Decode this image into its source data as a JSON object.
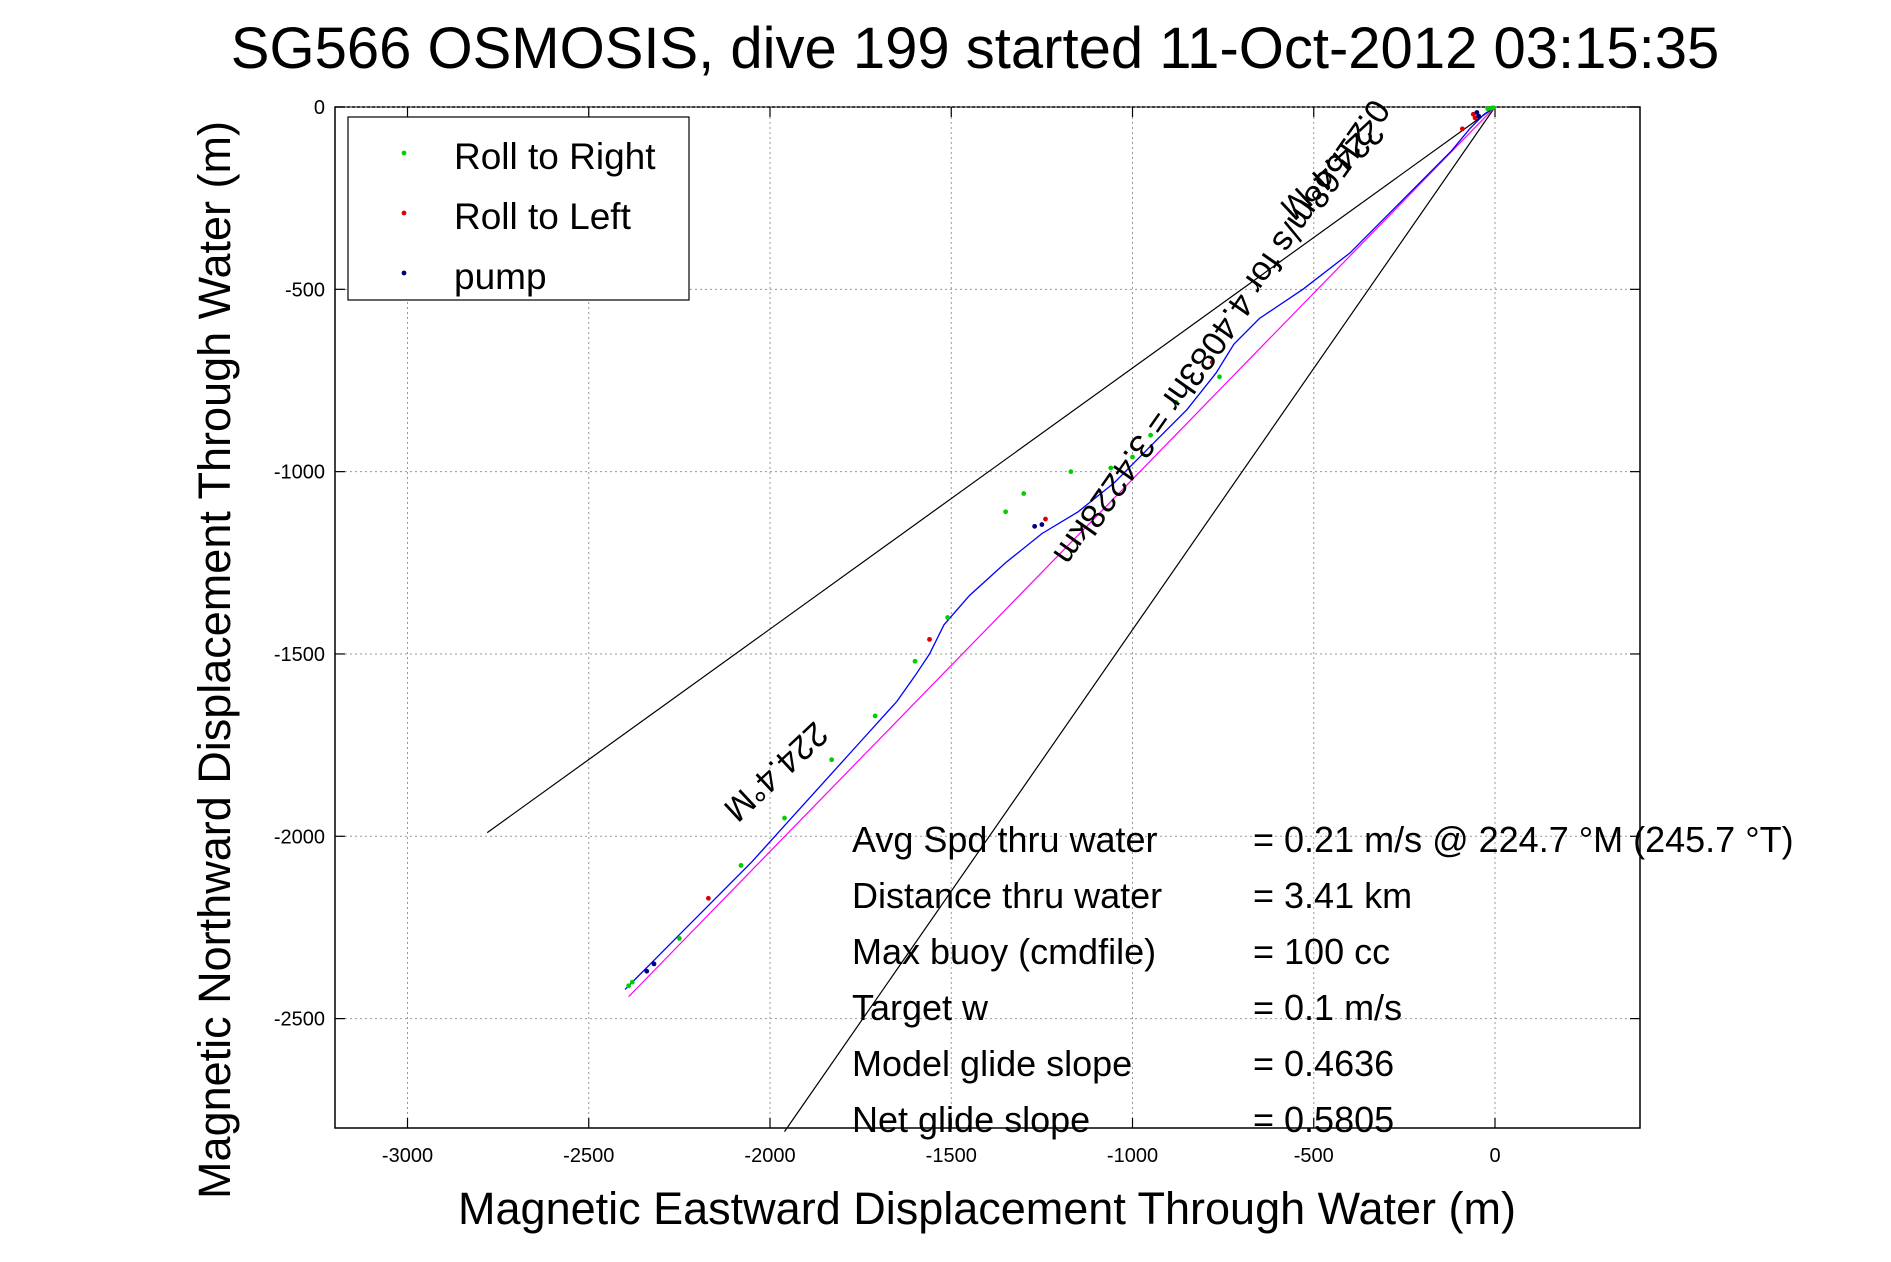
{
  "chart_data": {
    "type": "line",
    "title": "SG566 OSMOSIS, dive 199 started 11-Oct-2012 03:15:35",
    "xlabel": "Magnetic Eastward Displacement Through Water (m)",
    "ylabel": "Magnetic Northward Displacement Through Water (m)",
    "xlim": [
      -3200,
      400
    ],
    "ylim": [
      -2800,
      0
    ],
    "xticks": [
      -3000,
      -2500,
      -2000,
      -1500,
      -1000,
      -500,
      0
    ],
    "yticks": [
      0,
      -500,
      -1000,
      -1500,
      -2000,
      -2500
    ],
    "grid": true,
    "legend": {
      "placement": "top-left",
      "entries": [
        {
          "label": "Roll to Right",
          "color": "#00d000"
        },
        {
          "label": "Roll to Left",
          "color": "#e00000"
        },
        {
          "label": "pump",
          "color": "#000080"
        }
      ]
    },
    "track": {
      "color": "#0000ff",
      "x": [
        0,
        -30,
        -70,
        -120,
        -250,
        -400,
        -530,
        -650,
        -720,
        -770,
        -850,
        -950,
        -1050,
        -1150,
        -1250,
        -1350,
        -1450,
        -1520,
        -1560,
        -1600,
        -1650,
        -1750,
        -1850,
        -1950,
        -2050,
        -2150,
        -2250,
        -2330,
        -2370,
        -2400
      ],
      "y": [
        0,
        -20,
        -60,
        -120,
        -250,
        -400,
        -500,
        -580,
        -650,
        -730,
        -830,
        -930,
        -1030,
        -1110,
        -1170,
        -1250,
        -1340,
        -1420,
        -1500,
        -1560,
        -1630,
        -1740,
        -1850,
        -1960,
        -2070,
        -2170,
        -2270,
        -2350,
        -2390,
        -2420
      ]
    },
    "target_line": {
      "color": "#ff00ff",
      "x": [
        0,
        -2390
      ],
      "y": [
        0,
        -2440
      ]
    },
    "bounds": {
      "color": "#000000",
      "lines": [
        {
          "x": [
            0,
            -2780
          ],
          "y": [
            0,
            -1990
          ]
        },
        {
          "x": [
            0,
            -1960
          ],
          "y": [
            0,
            -2810
          ]
        }
      ]
    },
    "markers": {
      "roll_right": {
        "color": "#00d000",
        "x": [
          -20,
          -10,
          -5,
          -2080,
          -1960,
          -2250,
          -2380,
          -2390,
          -1830,
          -1600,
          -1510,
          -1350,
          -1300,
          -1170,
          -1060,
          -1000,
          -950,
          -880,
          -760,
          -1710
        ],
        "y": [
          -5,
          -3,
          -2,
          -2080,
          -1950,
          -2280,
          -2400,
          -2410,
          -1790,
          -1520,
          -1400,
          -1110,
          -1060,
          -1000,
          -990,
          -960,
          -900,
          -810,
          -740,
          -1670
        ]
      },
      "roll_left": {
        "color": "#e00000",
        "x": [
          -60,
          -55,
          -90,
          -2170,
          -1560,
          -1240,
          -780
        ],
        "y": [
          -20,
          -30,
          -60,
          -2170,
          -1460,
          -1130,
          -700
        ]
      },
      "pump": {
        "color": "#000080",
        "x": [
          -50,
          -45,
          -2320,
          -2340,
          -1270,
          -1250
        ],
        "y": [
          -15,
          -25,
          -2350,
          -2370,
          -1150,
          -1145
        ]
      }
    },
    "annotations": [
      {
        "text": "224.4°M",
        "x": -2005,
        "y": -1800
      },
      {
        "text": "224.4°M",
        "x": -470,
        "y": -150
      },
      {
        "text": "0.21568m/s for 4.4083hr = 3.4228km",
        "x": -780,
        "y": -600
      }
    ],
    "stats": [
      {
        "label": "Avg Spd thru water",
        "value": "=  0.21 m/s @ 224.7 °M (245.7 °T)"
      },
      {
        "label": "Distance thru water",
        "value": "=  3.41 km"
      },
      {
        "label": "Max buoy (cmdfile)",
        "value": "= 100 cc"
      },
      {
        "label": "Target w",
        "value": "= 0.1 m/s"
      },
      {
        "label": "Model glide slope",
        "value": "= 0.4636"
      },
      {
        "label": "Net glide slope",
        "value": "= 0.5805"
      }
    ]
  }
}
